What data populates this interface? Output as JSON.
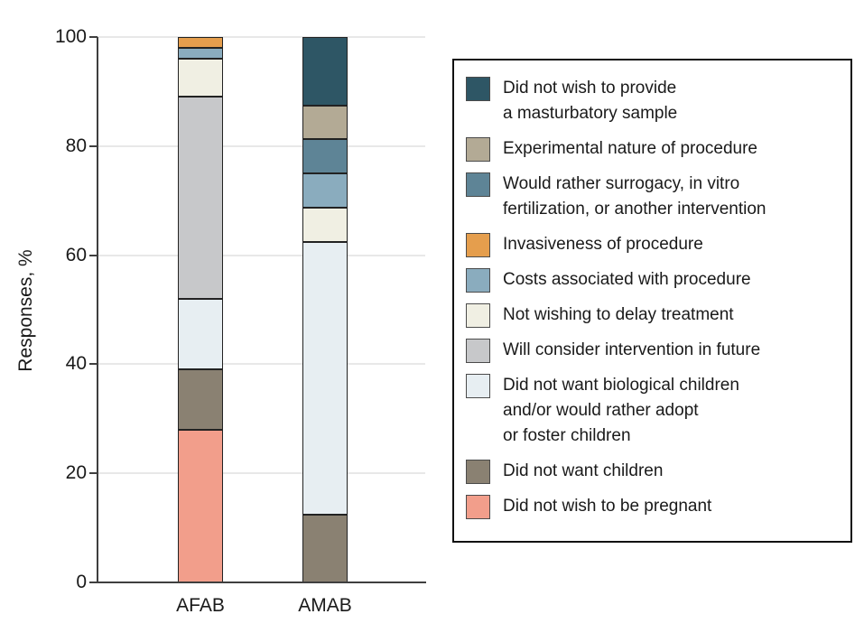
{
  "chart_data": {
    "type": "bar",
    "stacked": true,
    "title": "",
    "xlabel": "",
    "ylabel": "Responses, %",
    "ylim": [
      0,
      100
    ],
    "yticks": [
      100,
      80,
      60,
      40,
      20,
      0
    ],
    "ytick_labels": [
      "100",
      "80",
      "60",
      "40",
      "20",
      "0"
    ],
    "categories": [
      "AFAB",
      "AMAB"
    ],
    "grid": "horizontal",
    "legend_position": "right",
    "axis_color": "#3f3f3f",
    "gridline_color": "#e8e8e8",
    "series": [
      {
        "key": "no-masturbatory-sample",
        "color": "#2E5665",
        "values": [
          0,
          12.5
        ],
        "label_lines": [
          "Did not wish to provide",
          "a masturbatory sample"
        ]
      },
      {
        "key": "experimental-nature",
        "color": "#B3AA95",
        "values": [
          0,
          6.25
        ],
        "label_lines": [
          "Experimental nature of procedure"
        ]
      },
      {
        "key": "prefer-surrogacy-ivf",
        "color": "#5E8496",
        "values": [
          0,
          6.25
        ],
        "label_lines": [
          "Would rather surrogacy, in vitro",
          "fertilization, or another intervention"
        ]
      },
      {
        "key": "invasiveness-of-procedure",
        "color": "#E59E4D",
        "values": [
          2,
          0
        ],
        "label_lines": [
          "Invasiveness of procedure"
        ]
      },
      {
        "key": "costs-of-procedure",
        "color": "#8AACBE",
        "values": [
          2,
          6.25
        ],
        "label_lines": [
          "Costs associated with procedure"
        ]
      },
      {
        "key": "no-delay-treatment",
        "color": "#F0EFE3",
        "values": [
          7,
          6.25
        ],
        "label_lines": [
          "Not wishing to delay treatment"
        ]
      },
      {
        "key": "consider-intervention-future",
        "color": "#C7C8CA",
        "values": [
          37,
          0
        ],
        "label_lines": [
          "Will consider intervention in future"
        ]
      },
      {
        "key": "no-biological-children",
        "color": "#E7EEF2",
        "values": [
          13,
          50
        ],
        "label_lines": [
          "Did not want biological children",
          "and/or would rather adopt",
          "or foster children"
        ]
      },
      {
        "key": "no-children",
        "color": "#8A8172",
        "values": [
          11,
          12.5
        ],
        "label_lines": [
          "Did not want children"
        ]
      },
      {
        "key": "no-pregnancy",
        "color": "#F29E8B",
        "values": [
          28,
          0
        ],
        "label_lines": [
          "Did not wish to be pregnant"
        ]
      }
    ]
  }
}
